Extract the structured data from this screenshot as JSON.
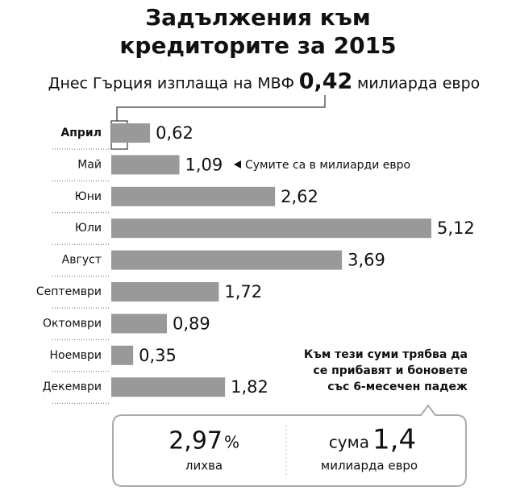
{
  "chart_data": {
    "type": "bar",
    "orientation": "horizontal",
    "title": [
      "Задължения към",
      "кредиторите за 2015"
    ],
    "subtitle": {
      "before": "Днес Гърция изплаща на МВФ",
      "amount": "0,42",
      "after": "милиарда евро"
    },
    "categories": [
      "Април",
      "Май",
      "Юни",
      "Юли",
      "Август",
      "Септември",
      "Октомври",
      "Ноември",
      "Декември"
    ],
    "values": [
      0.62,
      1.09,
      2.62,
      5.12,
      3.69,
      1.72,
      0.89,
      0.35,
      1.82
    ],
    "value_labels": [
      "0,62",
      "1,09",
      "2,62",
      "5,12",
      "3,69",
      "1,72",
      "0,89",
      "0,35",
      "1,82"
    ],
    "color": "#999999",
    "annotation": "Сумите са в милиарди евро",
    "note": [
      "Към тези суми трябва да",
      "се прибавят и боновете",
      "със 6-месечен падеж"
    ],
    "summary": {
      "rate": "2,97",
      "rate_unit": "%",
      "rate_label": "лихва",
      "sum_prefix": "сума",
      "sum": "1,4",
      "sum_label": "милиарда евро"
    }
  }
}
